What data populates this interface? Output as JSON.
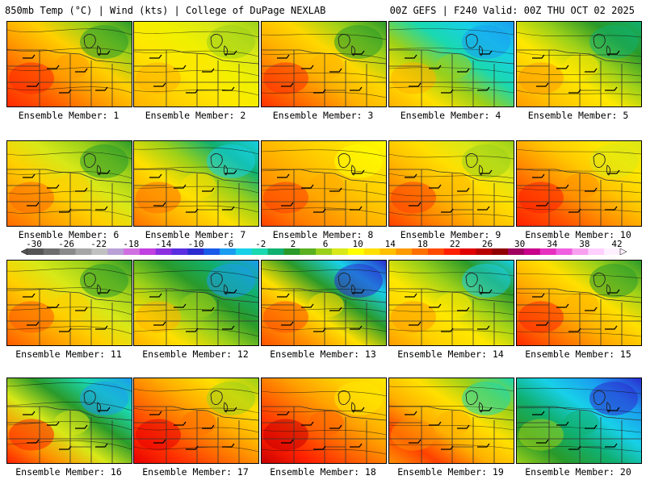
{
  "header": {
    "left": "850mb Temp (°C) | Wind (kts) | College of DuPage NEXLAB",
    "right": "00Z GEFS | F240 Valid: 00Z THU OCT 02 2025"
  },
  "colorbar": {
    "labels": [
      "-30",
      "-26",
      "-22",
      "-18",
      "-14",
      "-10",
      "-6",
      "-2",
      "2",
      "6",
      "10",
      "14",
      "18",
      "22",
      "26",
      "30",
      "34",
      "38",
      "42"
    ],
    "colors": [
      "#555555",
      "#6e6e6e",
      "#8a8a8a",
      "#a6a6a6",
      "#c0c0c0",
      "#b9a0d6",
      "#d070e0",
      "#c040e0",
      "#8a2ee0",
      "#5a2ee0",
      "#2b2bd0",
      "#1a5ae8",
      "#1a9cf0",
      "#18d0e8",
      "#1ad8b0",
      "#10b070",
      "#2a9a2a",
      "#5ab020",
      "#9ad01a",
      "#d8e818",
      "#ffff00",
      "#ffe000",
      "#ffc000",
      "#ff9a00",
      "#ff7000",
      "#ff4a00",
      "#ff2000",
      "#e00000",
      "#b80000",
      "#900000",
      "#a00060",
      "#c8008a",
      "#e830c0",
      "#f060e0",
      "#f8a0f0",
      "#ffd0ff",
      "#fff0ff"
    ]
  },
  "members": [
    {
      "caption": "Ensemble Member: 1",
      "colors": [
        "#ff2800",
        "#ff5a00",
        "#ff9a00",
        "#ffd000",
        "#9ad01a",
        "#2a9a2a"
      ]
    },
    {
      "caption": "Ensemble Member: 2",
      "colors": [
        "#ffb000",
        "#ffd000",
        "#ffe800",
        "#f0f000",
        "#d8e818",
        "#9ad01a"
      ]
    },
    {
      "caption": "Ensemble Member: 3",
      "colors": [
        "#ff3000",
        "#ff7000",
        "#ffb000",
        "#ffd800",
        "#9ad01a",
        "#2a9a2a"
      ]
    },
    {
      "caption": "Ensemble Member: 4",
      "colors": [
        "#ffb000",
        "#ffe000",
        "#9ad01a",
        "#1ad8b0",
        "#18d0e8",
        "#1a9cf0"
      ]
    },
    {
      "caption": "Ensemble Member: 5",
      "colors": [
        "#ff9a00",
        "#ffc800",
        "#ffe800",
        "#9ad01a",
        "#2a9a2a",
        "#10b070"
      ]
    },
    {
      "caption": "Ensemble Member: 6",
      "colors": [
        "#ff6a00",
        "#ffa000",
        "#ffd000",
        "#d8e818",
        "#9ad01a",
        "#2a9a2a"
      ]
    },
    {
      "caption": "Ensemble Member: 7",
      "colors": [
        "#ff7000",
        "#ffb000",
        "#ffe000",
        "#9ad01a",
        "#10b070",
        "#18d0e8"
      ]
    },
    {
      "caption": "Ensemble Member: 8",
      "colors": [
        "#ff4000",
        "#ff8000",
        "#ffa800",
        "#ffc800",
        "#ffe000",
        "#ffff00"
      ]
    },
    {
      "caption": "Ensemble Member: 9",
      "colors": [
        "#ff4000",
        "#ff8000",
        "#ffb800",
        "#ffe000",
        "#d8e818",
        "#9ad01a"
      ]
    },
    {
      "caption": "Ensemble Member: 10",
      "colors": [
        "#ff2000",
        "#ff5000",
        "#ff9000",
        "#ffc800",
        "#ffe800",
        "#d8e818"
      ]
    },
    {
      "caption": "Ensemble Member: 11",
      "colors": [
        "#ff5a00",
        "#ff9a00",
        "#ffd000",
        "#d8e818",
        "#9ad01a",
        "#2a9a2a"
      ]
    },
    {
      "caption": "Ensemble Member: 12",
      "colors": [
        "#ffb000",
        "#ffe000",
        "#9ad01a",
        "#2a9a2a",
        "#10b070",
        "#1a9cf0"
      ]
    },
    {
      "caption": "Ensemble Member: 13",
      "colors": [
        "#ff5000",
        "#ff9000",
        "#ffe000",
        "#2a9a2a",
        "#18d0e8",
        "#2b2bd0"
      ]
    },
    {
      "caption": "Ensemble Member: 14",
      "colors": [
        "#ff9a00",
        "#ffd000",
        "#ffe800",
        "#9ad01a",
        "#2a9a2a",
        "#18d0e8"
      ]
    },
    {
      "caption": "Ensemble Member: 15",
      "colors": [
        "#ff2800",
        "#ff7000",
        "#ffb000",
        "#ffe000",
        "#9ad01a",
        "#2a9a2a"
      ]
    },
    {
      "caption": "Ensemble Member: 16",
      "colors": [
        "#ff2000",
        "#ff9000",
        "#d8e818",
        "#2a9a2a",
        "#1ad8b0",
        "#1a9cf0"
      ]
    },
    {
      "caption": "Ensemble Member: 17",
      "colors": [
        "#e80000",
        "#ff3000",
        "#ff7000",
        "#ffb000",
        "#ffe000",
        "#9ad01a"
      ]
    },
    {
      "caption": "Ensemble Member: 18",
      "colors": [
        "#c80000",
        "#ff2000",
        "#ff6000",
        "#ffa000",
        "#ffd000",
        "#ffe800"
      ]
    },
    {
      "caption": "Ensemble Member: 19",
      "colors": [
        "#ff9000",
        "#ff4000",
        "#ffb000",
        "#ffe000",
        "#9ad01a",
        "#1ad8b0"
      ]
    },
    {
      "caption": "Ensemble Member: 20",
      "colors": [
        "#9ad01a",
        "#2a9a2a",
        "#10b070",
        "#18d0e8",
        "#1a9cf0",
        "#2b2bd0"
      ]
    }
  ]
}
